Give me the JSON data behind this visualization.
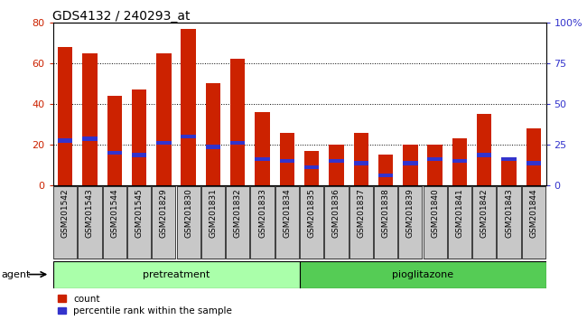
{
  "title": "GDS4132 / 240293_at",
  "samples": [
    "GSM201542",
    "GSM201543",
    "GSM201544",
    "GSM201545",
    "GSM201829",
    "GSM201830",
    "GSM201831",
    "GSM201832",
    "GSM201833",
    "GSM201834",
    "GSM201835",
    "GSM201836",
    "GSM201837",
    "GSM201838",
    "GSM201839",
    "GSM201840",
    "GSM201841",
    "GSM201842",
    "GSM201843",
    "GSM201844"
  ],
  "count_values": [
    68,
    65,
    44,
    47,
    65,
    77,
    50,
    62,
    36,
    26,
    17,
    20,
    26,
    15,
    20,
    20,
    23,
    35,
    13,
    28
  ],
  "percentile_values": [
    22,
    23,
    16,
    15,
    21,
    24,
    19,
    21,
    13,
    12,
    9,
    12,
    11,
    5,
    11,
    13,
    12,
    15,
    13,
    11
  ],
  "bar_color": "#CC2200",
  "blue_color": "#3333CC",
  "pretreatment_count": 10,
  "pioglitazone_count": 10,
  "pretreatment_label": "pretreatment",
  "pioglitazone_label": "pioglitazone",
  "agent_label": "agent",
  "legend_count": "count",
  "legend_percentile": "percentile rank within the sample",
  "ylim_left": [
    0,
    80
  ],
  "ylim_right": [
    0,
    100
  ],
  "yticks_left": [
    0,
    20,
    40,
    60,
    80
  ],
  "yticks_right": [
    0,
    25,
    50,
    75,
    100
  ],
  "ytick_labels_right": [
    "0",
    "25",
    "50",
    "75",
    "100%"
  ],
  "pretreatment_color": "#AAFFAA",
  "pioglitazone_color": "#55CC55",
  "tick_box_color": "#C8C8C8",
  "bar_width": 0.6,
  "title_fontsize": 10,
  "tick_fontsize": 6.5,
  "label_fontsize": 8,
  "legend_fontsize": 7.5
}
